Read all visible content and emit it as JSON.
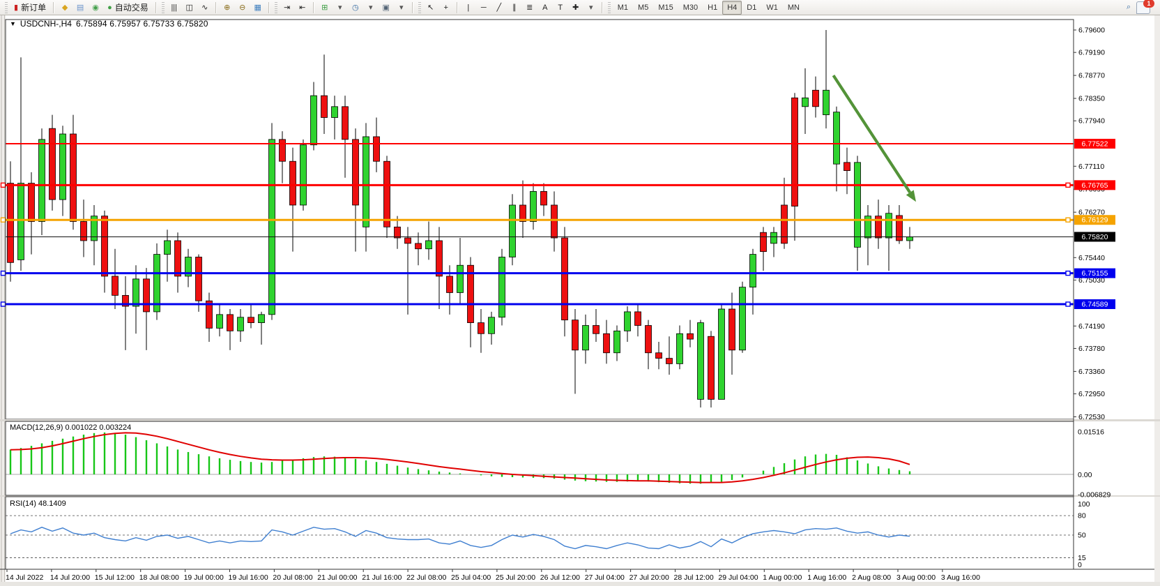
{
  "toolbar": {
    "new_order_label": "新订单",
    "autotrading_label": "自动交易",
    "items": [
      {
        "t": "handle"
      },
      {
        "t": "btn",
        "n": "new-order-button",
        "g": "▮",
        "c": "#cc2222",
        "bind": "toolbar.new_order_label"
      },
      {
        "t": "sep"
      },
      {
        "t": "ico",
        "n": "trade-history-icon",
        "g": "◆",
        "c": "#d9a520"
      },
      {
        "t": "ico",
        "n": "publish-chart-icon",
        "g": "▤",
        "c": "#6b94cc"
      },
      {
        "t": "ico",
        "n": "signals-icon",
        "g": "◉",
        "c": "#44a04c"
      },
      {
        "t": "btn",
        "n": "autotrading-button",
        "g": "●",
        "c": "#3f9f46",
        "bind": "toolbar.autotrading_label"
      },
      {
        "t": "sep"
      },
      {
        "t": "handle"
      },
      {
        "t": "ico",
        "n": "bar-chart-icon",
        "g": "|||",
        "c": "#222"
      },
      {
        "t": "ico",
        "n": "candlestick-chart-icon",
        "g": "◫",
        "c": "#222"
      },
      {
        "t": "ico",
        "n": "line-chart-icon",
        "g": "∿",
        "c": "#222"
      },
      {
        "t": "sep"
      },
      {
        "t": "ico",
        "n": "zoom-in-icon",
        "g": "⊕",
        "c": "#8a6d1a"
      },
      {
        "t": "ico",
        "n": "zoom-out-icon",
        "g": "⊖",
        "c": "#8a6d1a"
      },
      {
        "t": "ico",
        "n": "tile-windows-icon",
        "g": "▦",
        "c": "#3f7fbf"
      },
      {
        "t": "sep"
      },
      {
        "t": "handle"
      },
      {
        "t": "ico",
        "n": "auto-scroll-icon",
        "g": "⇥",
        "c": "#222"
      },
      {
        "t": "ico",
        "n": "chart-shift-icon",
        "g": "⇤",
        "c": "#222"
      },
      {
        "t": "sep"
      },
      {
        "t": "ico",
        "n": "indicators-add-icon",
        "g": "⊞",
        "c": "#3f9f46"
      },
      {
        "t": "ico",
        "n": "indicators-dropdown-icon",
        "g": "▾",
        "c": "#555"
      },
      {
        "t": "ico",
        "n": "periods-clock-icon",
        "g": "◷",
        "c": "#3a6ea5"
      },
      {
        "t": "ico",
        "n": "periods-dropdown-icon",
        "g": "▾",
        "c": "#555"
      },
      {
        "t": "ico",
        "n": "templates-icon",
        "g": "▣",
        "c": "#556677"
      },
      {
        "t": "ico",
        "n": "templates-dropdown-icon",
        "g": "▾",
        "c": "#555"
      },
      {
        "t": "sep"
      },
      {
        "t": "handle"
      },
      {
        "t": "ico",
        "n": "cursor-icon",
        "g": "↖",
        "c": "#222"
      },
      {
        "t": "ico",
        "n": "crosshair-icon",
        "g": "+",
        "c": "#222"
      },
      {
        "t": "sep"
      },
      {
        "t": "ico",
        "n": "vertical-line-icon",
        "g": "|",
        "c": "#222"
      },
      {
        "t": "ico",
        "n": "horizontal-line-icon",
        "g": "─",
        "c": "#222"
      },
      {
        "t": "ico",
        "n": "trendline-icon",
        "g": "╱",
        "c": "#222"
      },
      {
        "t": "ico",
        "n": "equidistant-channel-icon",
        "g": "∥",
        "c": "#222"
      },
      {
        "t": "ico",
        "n": "fibonacci-icon",
        "g": "≣",
        "c": "#222"
      },
      {
        "t": "ico",
        "n": "text-icon",
        "g": "A",
        "c": "#222"
      },
      {
        "t": "ico",
        "n": "text-label-icon",
        "g": "T",
        "c": "#222"
      },
      {
        "t": "ico",
        "n": "arrows-icon",
        "g": "✚",
        "c": "#222"
      },
      {
        "t": "ico",
        "n": "arrows-dropdown-icon",
        "g": "▾",
        "c": "#555"
      },
      {
        "t": "sep"
      },
      {
        "t": "handle"
      },
      {
        "t": "tf",
        "n": "timeframe-m1-button",
        "l": "M1"
      },
      {
        "t": "tf",
        "n": "timeframe-m5-button",
        "l": "M5"
      },
      {
        "t": "tf",
        "n": "timeframe-m15-button",
        "l": "M15"
      },
      {
        "t": "tf",
        "n": "timeframe-m30-button",
        "l": "M30"
      },
      {
        "t": "tf",
        "n": "timeframe-h1-button",
        "l": "H1"
      },
      {
        "t": "tf",
        "n": "timeframe-h4-button",
        "l": "H4",
        "active": true
      },
      {
        "t": "tf",
        "n": "timeframe-d1-button",
        "l": "D1"
      },
      {
        "t": "tf",
        "n": "timeframe-w1-button",
        "l": "W1"
      },
      {
        "t": "tf",
        "n": "timeframe-mn-button",
        "l": "MN"
      },
      {
        "t": "spacer"
      },
      {
        "t": "ico",
        "n": "search-icon",
        "g": "⌕",
        "c": "#3a6ea5"
      },
      {
        "t": "bubble",
        "n": "notifications-button",
        "badge": "1"
      }
    ],
    "notification_count": "1"
  },
  "chart": {
    "title": "USDCNH-,H4",
    "ohlc_text": "6.75894 6.75957 6.75733 6.75820",
    "dropdown_triangle": "▼",
    "price_ticks": [
      {
        "label": "6.79600",
        "p": 6.796
      },
      {
        "label": "6.79190",
        "p": 6.7919
      },
      {
        "label": "6.78770",
        "p": 6.7877
      },
      {
        "label": "6.78350",
        "p": 6.7835
      },
      {
        "label": "6.77940",
        "p": 6.7794
      },
      {
        "label": "6.77110",
        "p": 6.7711
      },
      {
        "label": "6.76690",
        "p": 6.7669
      },
      {
        "label": "6.76270",
        "p": 6.7627
      },
      {
        "label": "6.75440",
        "p": 6.7544
      },
      {
        "label": "6.75030",
        "p": 6.7503
      },
      {
        "label": "6.74190",
        "p": 6.7419
      },
      {
        "label": "6.73780",
        "p": 6.7378
      },
      {
        "label": "6.73360",
        "p": 6.7336
      },
      {
        "label": "6.72950",
        "p": 6.7295
      },
      {
        "label": "6.72530",
        "p": 6.7253
      }
    ],
    "hlines": [
      {
        "name": "resistance-line-1",
        "label": "6.77522",
        "p": 6.77522,
        "color": "#ff0000",
        "w": 2,
        "anchors": false
      },
      {
        "name": "resistance-line-2",
        "label": "6.76765",
        "p": 6.76765,
        "color": "#ff0000",
        "w": 3,
        "anchors": true
      },
      {
        "name": "pivot-line",
        "label": "6.76129",
        "p": 6.76129,
        "color": "#f5a300",
        "w": 3,
        "anchors": true
      },
      {
        "name": "current-price-line",
        "label": "6.75820",
        "p": 6.7582,
        "color": "#111111",
        "w": 1,
        "anchors": false,
        "badge_bg": "#000000"
      },
      {
        "name": "support-line-1",
        "label": "6.75155",
        "p": 6.75155,
        "color": "#0000ee",
        "w": 3,
        "anchors": true
      },
      {
        "name": "support-line-2",
        "label": "6.74589",
        "p": 6.74589,
        "color": "#0000ee",
        "w": 3,
        "anchors": true
      }
    ],
    "time_labels": [
      "14 Jul 2022",
      "14 Jul 20:00",
      "15 Jul 12:00",
      "18 Jul 08:00",
      "19 Jul 00:00",
      "19 Jul 16:00",
      "20 Jul 08:00",
      "21 Jul 00:00",
      "21 Jul 16:00",
      "22 Jul 08:00",
      "25 Jul 04:00",
      "25 Jul 20:00",
      "26 Jul 12:00",
      "27 Jul 04:00",
      "27 Jul 20:00",
      "28 Jul 12:00",
      "29 Jul 04:00",
      "1 Aug 00:00",
      "1 Aug 16:00",
      "2 Aug 08:00",
      "3 Aug 00:00",
      "3 Aug 16:00"
    ],
    "colors": {
      "bull": "#2fd32f",
      "bear": "#ee1010",
      "wick": "#000000",
      "macd_hist": "#17c617",
      "macd_signal": "#e00000",
      "rsi_line": "#3f7fd0",
      "arrow": "#539338"
    }
  },
  "chart_data": {
    "type": "candlestick+indicators",
    "symbol": "USDCNH-",
    "timeframe": "H4",
    "current_ohlc": {
      "open": 6.75894,
      "high": 6.75957,
      "low": 6.75733,
      "close": 6.7582
    },
    "ylim": [
      6.7253,
      6.796
    ],
    "candles": [
      [
        6.768,
        6.772,
        6.75,
        6.7535
      ],
      [
        6.754,
        6.791,
        6.752,
        6.768
      ],
      [
        6.768,
        6.77,
        6.755,
        6.761
      ],
      [
        6.761,
        6.778,
        6.7585,
        6.776
      ],
      [
        6.778,
        6.7805,
        6.763,
        6.765
      ],
      [
        6.765,
        6.7785,
        6.762,
        6.777
      ],
      [
        6.777,
        6.7805,
        6.7595,
        6.761
      ],
      [
        6.761,
        6.765,
        6.7545,
        6.7575
      ],
      [
        6.7575,
        6.764,
        6.753,
        6.762
      ],
      [
        6.762,
        6.763,
        6.748,
        6.751
      ],
      [
        6.751,
        6.756,
        6.745,
        6.7475
      ],
      [
        6.7475,
        6.751,
        6.7375,
        6.7455
      ],
      [
        6.7455,
        6.753,
        6.7405,
        6.7505
      ],
      [
        6.7505,
        6.7525,
        6.7375,
        6.7445
      ],
      [
        6.7445,
        6.757,
        6.743,
        6.755
      ],
      [
        6.755,
        6.7595,
        6.75,
        6.7575
      ],
      [
        6.7575,
        6.759,
        6.748,
        6.751
      ],
      [
        6.751,
        6.756,
        6.749,
        6.7545
      ],
      [
        6.7545,
        6.755,
        6.7445,
        6.7465
      ],
      [
        6.7465,
        6.748,
        6.739,
        6.7415
      ],
      [
        6.7415,
        6.746,
        6.74,
        6.744
      ],
      [
        6.744,
        6.745,
        6.7375,
        6.741
      ],
      [
        6.741,
        6.745,
        6.739,
        6.7435
      ],
      [
        6.7435,
        6.746,
        6.7415,
        6.7425
      ],
      [
        6.7425,
        6.7445,
        6.7385,
        6.744
      ],
      [
        6.744,
        6.779,
        6.743,
        6.776
      ],
      [
        6.776,
        6.7775,
        6.768,
        6.772
      ],
      [
        6.772,
        6.7745,
        6.7555,
        6.764
      ],
      [
        6.764,
        6.776,
        6.763,
        6.775
      ],
      [
        6.775,
        6.7865,
        6.774,
        6.784
      ],
      [
        6.784,
        6.7915,
        6.777,
        6.78
      ],
      [
        6.78,
        6.784,
        6.776,
        6.782
      ],
      [
        6.782,
        6.784,
        6.769,
        6.776
      ],
      [
        6.776,
        6.778,
        6.7555,
        6.764
      ],
      [
        6.76,
        6.779,
        6.7555,
        6.7765
      ],
      [
        6.7765,
        6.78,
        6.77,
        6.772
      ],
      [
        6.772,
        6.773,
        6.758,
        6.76
      ],
      [
        6.76,
        6.762,
        6.756,
        6.758
      ],
      [
        6.758,
        6.76,
        6.744,
        6.757
      ],
      [
        6.757,
        6.759,
        6.753,
        6.756
      ],
      [
        6.756,
        6.761,
        6.754,
        6.7575
      ],
      [
        6.7575,
        6.76,
        6.745,
        6.751
      ],
      [
        6.751,
        6.753,
        6.744,
        6.748
      ],
      [
        6.748,
        6.758,
        6.746,
        6.753
      ],
      [
        6.753,
        6.7545,
        6.738,
        6.7425
      ],
      [
        6.7425,
        6.745,
        6.737,
        6.7405
      ],
      [
        6.7405,
        6.7445,
        6.7385,
        6.7435
      ],
      [
        6.7435,
        6.756,
        6.742,
        6.7545
      ],
      [
        6.7545,
        6.766,
        6.753,
        6.764
      ],
      [
        6.764,
        6.7685,
        6.758,
        6.761
      ],
      [
        6.761,
        6.768,
        6.7595,
        6.7665
      ],
      [
        6.7665,
        6.768,
        6.762,
        6.764
      ],
      [
        6.764,
        6.7665,
        6.7555,
        6.758
      ],
      [
        6.758,
        6.76,
        6.74,
        6.743
      ],
      [
        6.743,
        6.745,
        6.7295,
        6.7375
      ],
      [
        6.7375,
        6.744,
        6.735,
        6.742
      ],
      [
        6.742,
        6.745,
        6.739,
        6.7405
      ],
      [
        6.7405,
        6.743,
        6.735,
        6.737
      ],
      [
        6.737,
        6.742,
        6.7355,
        6.741
      ],
      [
        6.741,
        6.7455,
        6.739,
        6.7445
      ],
      [
        6.7445,
        6.746,
        6.74,
        6.742
      ],
      [
        6.742,
        6.743,
        6.734,
        6.737
      ],
      [
        6.737,
        6.739,
        6.734,
        6.736
      ],
      [
        6.736,
        6.74,
        6.733,
        6.735
      ],
      [
        6.735,
        6.742,
        6.734,
        6.7405
      ],
      [
        6.7405,
        6.743,
        6.738,
        6.7395
      ],
      [
        6.7285,
        6.743,
        6.727,
        6.7425
      ],
      [
        6.74,
        6.741,
        6.727,
        6.7285
      ],
      [
        6.7285,
        6.746,
        6.7285,
        6.745
      ],
      [
        6.745,
        6.748,
        6.733,
        6.7375
      ],
      [
        6.7375,
        6.75,
        6.737,
        6.749
      ],
      [
        6.749,
        6.756,
        6.744,
        6.755
      ],
      [
        6.759,
        6.76,
        6.752,
        6.7555
      ],
      [
        6.757,
        6.76,
        6.7545,
        6.759
      ],
      [
        6.764,
        6.769,
        6.756,
        6.757
      ],
      [
        6.7836,
        6.7845,
        6.7575,
        6.7638
      ],
      [
        6.782,
        6.789,
        6.777,
        6.7836
      ],
      [
        6.785,
        6.7875,
        6.78,
        6.782
      ],
      [
        6.7805,
        6.796,
        6.778,
        6.785
      ],
      [
        6.7715,
        6.782,
        6.7665,
        6.781
      ],
      [
        6.7718,
        6.7745,
        6.766,
        6.7703
      ],
      [
        6.7563,
        6.773,
        6.752,
        6.7718
      ],
      [
        6.758,
        6.764,
        6.753,
        6.762
      ],
      [
        6.762,
        6.765,
        6.756,
        6.758
      ],
      [
        6.758,
        6.764,
        6.752,
        6.7625
      ],
      [
        6.7621,
        6.764,
        6.7569,
        6.7575
      ],
      [
        6.7575,
        6.76,
        6.756,
        6.7582
      ]
    ],
    "macd": {
      "label": "MACD(12,26,9)",
      "value_main": "0.001022",
      "value_signal": "0.003224",
      "axis_ticks": [
        "0.01516",
        "0.00",
        "-0.006829"
      ],
      "histogram": [
        0.008,
        0.0085,
        0.0092,
        0.01,
        0.0108,
        0.0115,
        0.0122,
        0.0128,
        0.0133,
        0.0135,
        0.0133,
        0.0128,
        0.012,
        0.011,
        0.01,
        0.009,
        0.008,
        0.0072,
        0.0065,
        0.0058,
        0.0052,
        0.0047,
        0.0043,
        0.004,
        0.0038,
        0.004,
        0.0044,
        0.0048,
        0.0052,
        0.0056,
        0.0058,
        0.0057,
        0.0054,
        0.005,
        0.0045,
        0.004,
        0.0034,
        0.0028,
        0.0022,
        0.0017,
        0.0013,
        0.0009,
        0.0006,
        0.0003,
        0.0,
        -0.0003,
        -0.0006,
        -0.0008,
        -0.0009,
        -0.001,
        -0.0011,
        -0.0012,
        -0.0014,
        -0.0017,
        -0.002,
        -0.0022,
        -0.0023,
        -0.0024,
        -0.0024,
        -0.0023,
        -0.0022,
        -0.0023,
        -0.0025,
        -0.0027,
        -0.0029,
        -0.003,
        -0.003,
        -0.0028,
        -0.0024,
        -0.0018,
        -0.001,
        0.0,
        0.0012,
        0.0024,
        0.0036,
        0.0048,
        0.0058,
        0.0064,
        0.0066,
        0.0063,
        0.0055,
        0.0045,
        0.0035,
        0.0026,
        0.0019,
        0.0014,
        0.001
      ],
      "signal": [
        0.0079,
        0.008,
        0.0082,
        0.0086,
        0.0092,
        0.0099,
        0.0107,
        0.0115,
        0.0122,
        0.0128,
        0.0132,
        0.0134,
        0.0133,
        0.0129,
        0.0123,
        0.0115,
        0.0106,
        0.0097,
        0.0088,
        0.0079,
        0.0071,
        0.0064,
        0.0058,
        0.0053,
        0.0049,
        0.0047,
        0.0046,
        0.0046,
        0.0047,
        0.0049,
        0.0051,
        0.0053,
        0.0054,
        0.0054,
        0.0053,
        0.0051,
        0.0048,
        0.0044,
        0.004,
        0.0035,
        0.003,
        0.0025,
        0.0021,
        0.0017,
        0.0013,
        0.0009,
        0.0006,
        0.0003,
        0.0,
        -0.0002,
        -0.0004,
        -0.0006,
        -0.0008,
        -0.001,
        -0.0012,
        -0.0014,
        -0.0016,
        -0.0018,
        -0.0019,
        -0.002,
        -0.0021,
        -0.0021,
        -0.0022,
        -0.0023,
        -0.0024,
        -0.0025,
        -0.0026,
        -0.0026,
        -0.0026,
        -0.0024,
        -0.0021,
        -0.0016,
        -0.001,
        -0.0003,
        0.0005,
        0.0014,
        0.0023,
        0.0032,
        0.004,
        0.0047,
        0.0052,
        0.0055,
        0.0056,
        0.0054,
        0.005,
        0.0043,
        0.0032
      ]
    },
    "rsi": {
      "label": "RSI(14)",
      "value": "48.1409",
      "levels": [
        80,
        50,
        15
      ],
      "axis_ticks": [
        "100",
        "80",
        "50",
        "15",
        "0"
      ],
      "values": [
        52,
        58,
        55,
        62,
        56,
        61,
        53,
        50,
        53,
        46,
        43,
        41,
        46,
        42,
        48,
        50,
        45,
        48,
        43,
        38,
        41,
        38,
        41,
        40,
        41,
        58,
        55,
        50,
        56,
        62,
        59,
        60,
        55,
        48,
        57,
        53,
        46,
        44,
        43,
        43,
        44,
        38,
        36,
        41,
        34,
        31,
        34,
        43,
        50,
        47,
        51,
        48,
        43,
        33,
        29,
        34,
        32,
        29,
        34,
        38,
        35,
        30,
        29,
        35,
        30,
        33,
        40,
        32,
        44,
        38,
        46,
        52,
        55,
        57,
        55,
        52,
        58,
        60,
        59,
        61,
        56,
        53,
        55,
        50,
        47,
        50,
        48.14
      ]
    },
    "annotations": [
      {
        "type": "arrow",
        "name": "trend-arrow",
        "color": "#539338",
        "from": {
          "bar": 78.7,
          "price": 6.7877
        },
        "to": {
          "bar": 86.6,
          "price": 6.7646
        }
      }
    ]
  }
}
